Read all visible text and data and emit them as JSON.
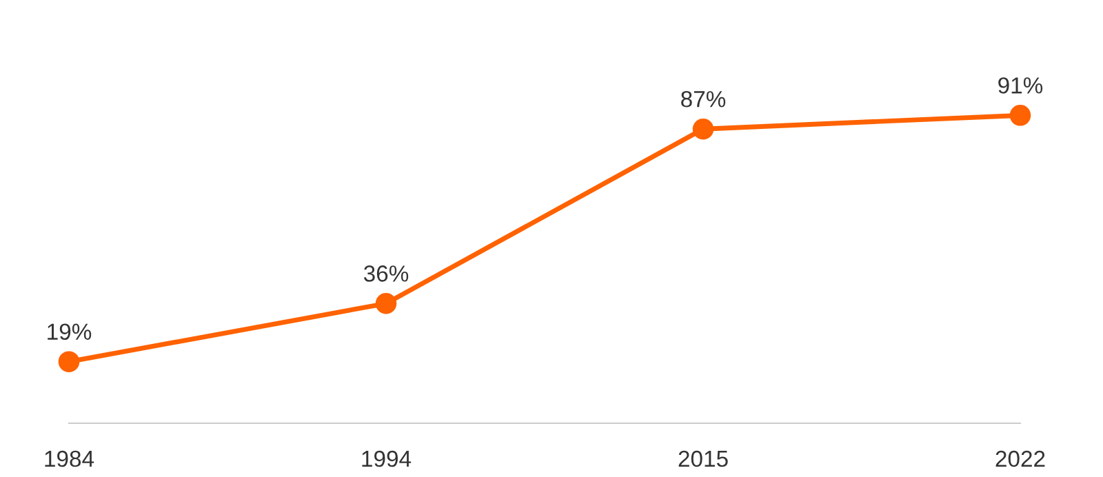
{
  "chart_data": {
    "type": "line",
    "categories": [
      "1984",
      "1994",
      "2015",
      "2022"
    ],
    "series": [
      {
        "color": "#ff6200",
        "values": [
          19,
          36,
          87,
          91
        ],
        "value_labels": [
          "19%",
          "36%",
          "87%",
          "91%"
        ]
      }
    ],
    "marker": "circle",
    "line_style": "solid",
    "grid": false,
    "legend": false,
    "tick_labels": "x"
  }
}
